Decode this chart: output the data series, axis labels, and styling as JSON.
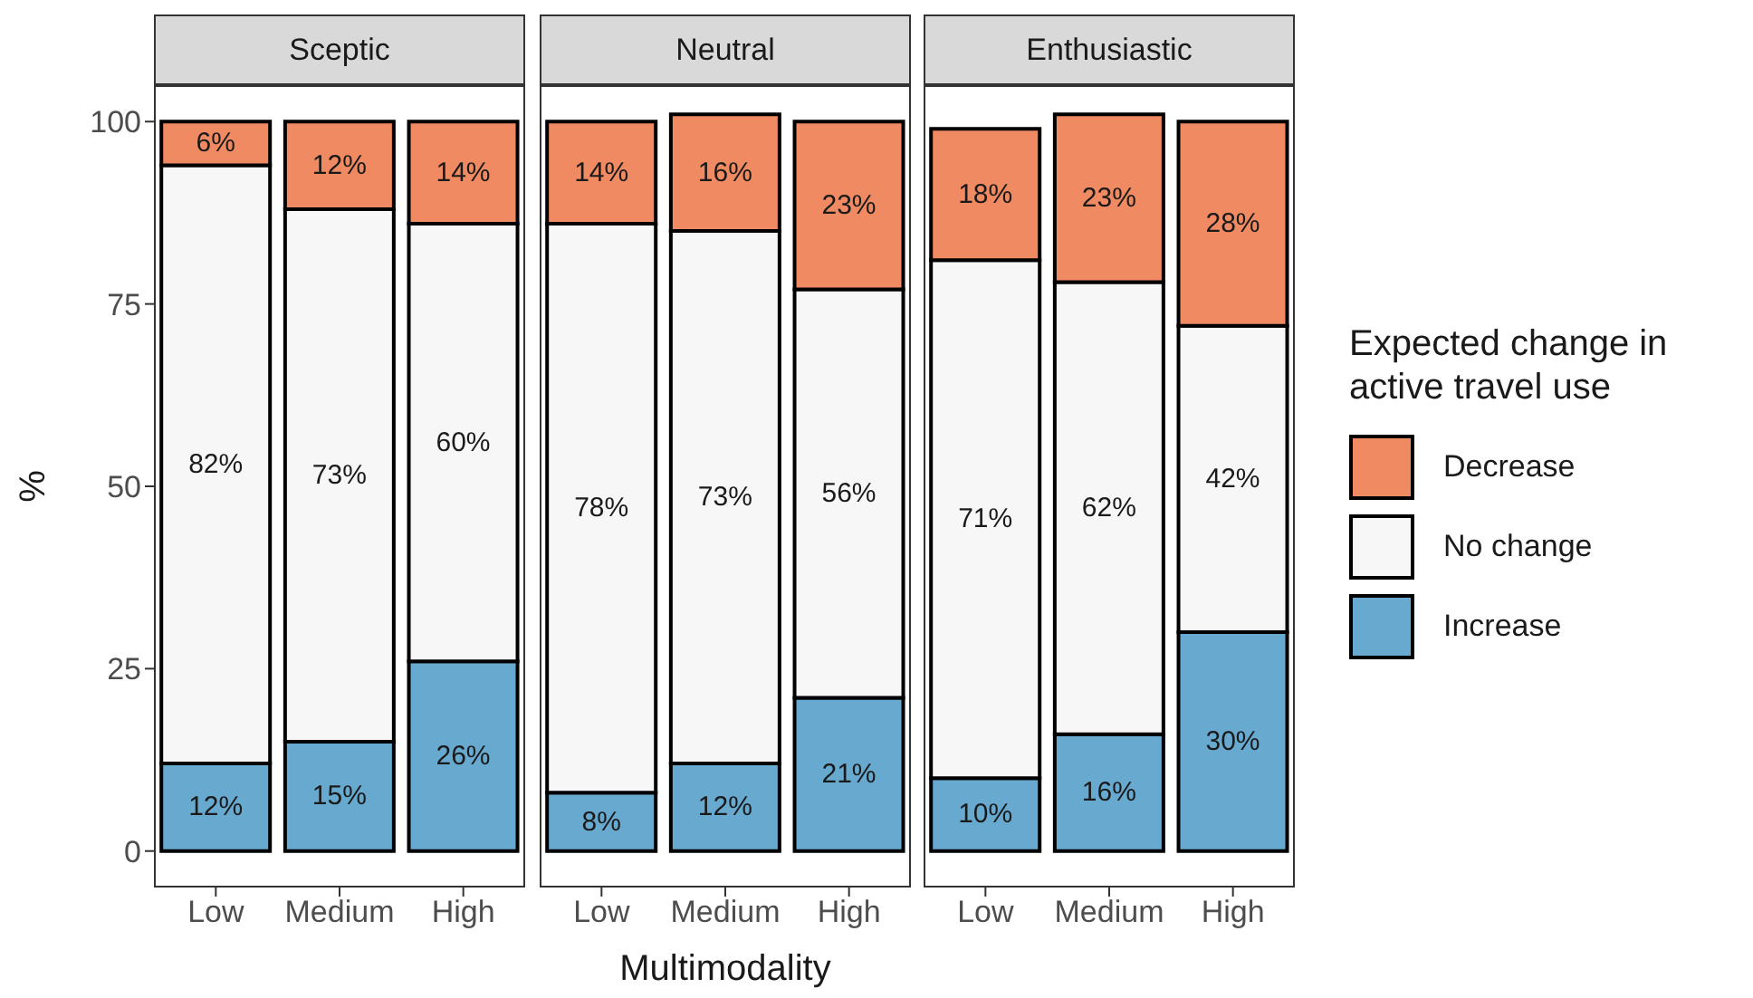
{
  "chart_data": [
    {
      "type": "bar",
      "title": "Sceptic",
      "ylabel": "%",
      "categories": [
        "Low",
        "Medium",
        "High"
      ],
      "stacked": true,
      "ylim": [
        -5,
        105
      ],
      "yticks": [
        0,
        25,
        50,
        75,
        100
      ],
      "series": [
        {
          "color": "#67a9cf",
          "values": [
            12,
            15,
            26
          ],
          "value_labels": [
            "12%",
            "15%",
            "26%"
          ]
        },
        {
          "color": "#f7f7f7",
          "values": [
            82,
            73,
            60
          ],
          "value_labels": [
            "82%",
            "73%",
            "60%"
          ]
        },
        {
          "color": "#ef8a62",
          "values": [
            6,
            12,
            14
          ],
          "value_labels": [
            "6%",
            "12%",
            "14%"
          ]
        }
      ]
    },
    {
      "type": "bar",
      "title": "Neutral",
      "xlabel": "Multimodality",
      "categories": [
        "Low",
        "Medium",
        "High"
      ],
      "stacked": true,
      "ylim": [
        -5,
        105
      ],
      "yticks": [
        0,
        25,
        50,
        75,
        100
      ],
      "tick_labels": "x",
      "series": [
        {
          "color": "#67a9cf",
          "values": [
            8,
            12,
            21
          ],
          "value_labels": [
            "8%",
            "12%",
            "21%"
          ]
        },
        {
          "color": "#f7f7f7",
          "values": [
            78,
            73,
            56
          ],
          "value_labels": [
            "78%",
            "73%",
            "56%"
          ]
        },
        {
          "color": "#ef8a62",
          "values": [
            14,
            16,
            23
          ],
          "value_labels": [
            "14%",
            "16%",
            "23%"
          ]
        }
      ]
    },
    {
      "type": "bar",
      "title": "Enthusiastic",
      "categories": [
        "Low",
        "Medium",
        "High"
      ],
      "stacked": true,
      "ylim": [
        -5,
        105
      ],
      "yticks": [
        0,
        25,
        50,
        75,
        100
      ],
      "tick_labels": "x",
      "legend": "right",
      "legend_title": "Expected change in active travel use",
      "series": [
        {
          "name": "Increase",
          "color": "#67a9cf",
          "values": [
            10,
            16,
            30
          ],
          "value_labels": [
            "10%",
            "16%",
            "30%"
          ]
        },
        {
          "name": "No change",
          "color": "#f7f7f7",
          "values": [
            71,
            62,
            42
          ],
          "value_labels": [
            "71%",
            "62%",
            "42%"
          ]
        },
        {
          "name": "Decrease",
          "color": "#ef8a62",
          "values": [
            18,
            23,
            28
          ],
          "value_labels": [
            "18%",
            "23%",
            "28%"
          ]
        }
      ]
    }
  ]
}
